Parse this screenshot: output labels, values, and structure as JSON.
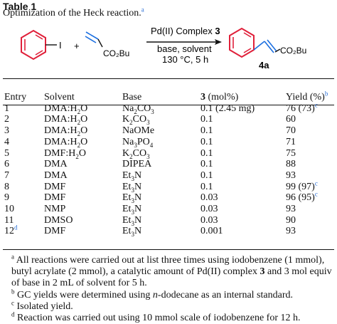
{
  "table_label": "Table 1",
  "caption": "Optimization of the Heck reaction.",
  "caption_mark": "a",
  "scheme": {
    "iodo": "I",
    "plus": "+",
    "ester_left": "CO₂Bu",
    "catalyst": "Pd(II) Complex ",
    "catalyst_num": "3",
    "conditions_1": "base, solvent",
    "conditions_2": "130 °C, 5 h",
    "ester_right": "CO₂Bu",
    "product_label": "4a"
  },
  "headers": {
    "entry": "Entry",
    "solvent": "Solvent",
    "base": "Base",
    "loading_num": "3",
    "loading_unit": " (mol%)",
    "yield": "Yield (%)",
    "yield_mark": "b"
  },
  "rows": [
    {
      "entry": "1",
      "entry_mark": "",
      "solvent": "DMA:H",
      "solvent_sub": "2",
      "solvent_tail": "O",
      "base": "Na",
      "base_sub": "2",
      "base_tail": "CO",
      "base_sub2": "3",
      "loading": "0.1 (2.45 mg)",
      "yield": "76 (73)",
      "yield_mark": "c"
    },
    {
      "entry": "2",
      "entry_mark": "",
      "solvent": "DMA:H",
      "solvent_sub": "2",
      "solvent_tail": "O",
      "base": "K",
      "base_sub": "2",
      "base_tail": "CO",
      "base_sub2": "3",
      "loading": "0.1",
      "yield": "60",
      "yield_mark": ""
    },
    {
      "entry": "3",
      "entry_mark": "",
      "solvent": "DMA:H",
      "solvent_sub": "2",
      "solvent_tail": "O",
      "base": "NaOMe",
      "base_sub": "",
      "base_tail": "",
      "base_sub2": "",
      "loading": "0.1",
      "yield": "70",
      "yield_mark": ""
    },
    {
      "entry": "4",
      "entry_mark": "",
      "solvent": "DMA:H",
      "solvent_sub": "2",
      "solvent_tail": "O",
      "base": "Na",
      "base_sub": "3",
      "base_tail": "PO",
      "base_sub2": "4",
      "loading": "0.1",
      "yield": "71",
      "yield_mark": ""
    },
    {
      "entry": "5",
      "entry_mark": "",
      "solvent": "DMF:H",
      "solvent_sub": "2",
      "solvent_tail": "O",
      "base": "K",
      "base_sub": "2",
      "base_tail": "CO",
      "base_sub2": "3",
      "loading": "0.1",
      "yield": "75",
      "yield_mark": ""
    },
    {
      "entry": "6",
      "entry_mark": "",
      "solvent": "DMA",
      "solvent_sub": "",
      "solvent_tail": "",
      "base": "DIPEA",
      "base_sub": "",
      "base_tail": "",
      "base_sub2": "",
      "loading": "0.1",
      "yield": "88",
      "yield_mark": ""
    },
    {
      "entry": "7",
      "entry_mark": "",
      "solvent": "DMA",
      "solvent_sub": "",
      "solvent_tail": "",
      "base": "Et",
      "base_sub": "3",
      "base_tail": "N",
      "base_sub2": "",
      "loading": "0.1",
      "yield": "93",
      "yield_mark": ""
    },
    {
      "entry": "8",
      "entry_mark": "",
      "solvent": "DMF",
      "solvent_sub": "",
      "solvent_tail": "",
      "base": "Et",
      "base_sub": "3",
      "base_tail": "N",
      "base_sub2": "",
      "loading": "0.1",
      "yield": "99 (97)",
      "yield_mark": "c"
    },
    {
      "entry": "9",
      "entry_mark": "",
      "solvent": "DMF",
      "solvent_sub": "",
      "solvent_tail": "",
      "base": "Et",
      "base_sub": "3",
      "base_tail": "N",
      "base_sub2": "",
      "loading": "0.03",
      "yield": "96 (95)",
      "yield_mark": "c"
    },
    {
      "entry": "10",
      "entry_mark": "",
      "solvent": "NMP",
      "solvent_sub": "",
      "solvent_tail": "",
      "base": "Et",
      "base_sub": "3",
      "base_tail": "N",
      "base_sub2": "",
      "loading": "0.03",
      "yield": "93",
      "yield_mark": ""
    },
    {
      "entry": "11",
      "entry_mark": "",
      "solvent": "DMSO",
      "solvent_sub": "",
      "solvent_tail": "",
      "base": "Et",
      "base_sub": "3",
      "base_tail": "N",
      "base_sub2": "",
      "loading": "0.03",
      "yield": "90",
      "yield_mark": ""
    },
    {
      "entry": "12",
      "entry_mark": "d",
      "solvent": "DMF",
      "solvent_sub": "",
      "solvent_tail": "",
      "base": "Et",
      "base_sub": "3",
      "base_tail": "N",
      "base_sub2": "",
      "loading": "0.001",
      "yield": "93",
      "yield_mark": ""
    }
  ],
  "footnotes": {
    "a_mark": "a",
    "a_pre": "All reactions were carried out at list three times using iodobenzene (1 mmol), butyl acrylate (2 mmol), a catalytic amount of Pd(II) complex ",
    "a_bold": "3",
    "a_post": " and 3 mol equiv of base in 2 mL of solvent for 5 h.",
    "b_mark": "b",
    "b_pre": "GC yields were determined using ",
    "b_italic": "n",
    "b_post": "-dodecane as an internal standard.",
    "c_mark": "c",
    "c_text": "Isolated yield.",
    "d_mark": "d",
    "d_text": "Reaction was carried out using 10 mmol scale of iodobenzene for 12 h."
  },
  "colors": {
    "benzene_ring": "#e0203a",
    "alkene": "#1c6fe0",
    "footnote_mark": "#2a6fd6"
  }
}
